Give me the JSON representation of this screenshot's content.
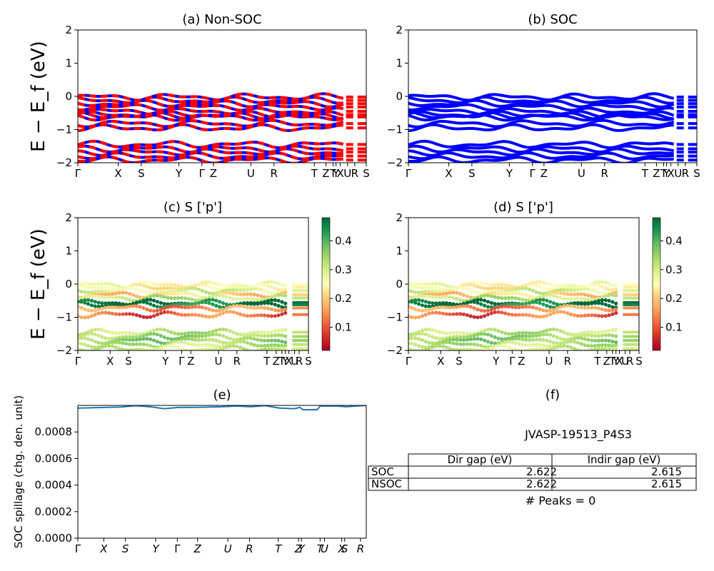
{
  "material_id": "JVASP-19513_P4S3",
  "peaks_text": "# Peaks = 0",
  "colors": {
    "nonsoc_a": "#0000ff",
    "nonsoc_b": "#ff0000",
    "soc": "#0000ff",
    "spillage": "#1f77b4"
  },
  "colormap": {
    "name": "RdYlGn",
    "stops": [
      "#a50026",
      "#f46d43",
      "#fdae61",
      "#fee08b",
      "#ffffbf",
      "#d9ef8b",
      "#a6d96a",
      "#66bd63",
      "#1a9850",
      "#006837"
    ]
  },
  "chart_data": [
    {
      "panel": "a",
      "type": "line",
      "title": "(a) Non-SOC",
      "ylabel": "E − E_f (eV)",
      "ylim": [
        -2,
        2
      ],
      "yticks": [
        "2",
        "1",
        "0",
        "−1",
        "−2"
      ],
      "xlabels": [
        "Γ",
        "X",
        "S",
        "Y",
        "Γ",
        "Z",
        "U",
        "R",
        "T",
        "Z",
        "T",
        "Y",
        "X",
        "U",
        "R",
        "S"
      ],
      "xpos": [
        0,
        0.14,
        0.22,
        0.35,
        0.43,
        0.47,
        0.6,
        0.68,
        0.82,
        0.86,
        0.885,
        0.895,
        0.91,
        0.935,
        0.96,
        1.0
      ],
      "bands_eV": [
        -0.02,
        -0.12,
        -0.22,
        -0.32,
        -0.45,
        -0.55,
        -0.58,
        -0.62,
        -0.82,
        -0.95,
        -1.45,
        -1.58,
        -1.68,
        -1.8,
        -1.92
      ]
    },
    {
      "panel": "b",
      "type": "line",
      "title": "(b) SOC",
      "ylabel": "",
      "ylim": [
        -2,
        2
      ],
      "yticks": [
        "2",
        "1",
        "0",
        "−1",
        "−2"
      ],
      "xlabels": [
        "Γ",
        "X",
        "S",
        "Y",
        "Γ",
        "Z",
        "U",
        "R",
        "T",
        "Z",
        "T",
        "Y",
        "X",
        "U",
        "R",
        "S"
      ],
      "xpos": [
        0,
        0.14,
        0.22,
        0.35,
        0.43,
        0.47,
        0.6,
        0.68,
        0.82,
        0.86,
        0.885,
        0.895,
        0.91,
        0.935,
        0.96,
        1.0
      ],
      "bands_eV": [
        -0.02,
        -0.12,
        -0.22,
        -0.32,
        -0.45,
        -0.55,
        -0.58,
        -0.62,
        -0.82,
        -0.95,
        -1.45,
        -1.58,
        -1.68,
        -1.8,
        -1.92
      ]
    },
    {
      "panel": "c",
      "type": "scatter",
      "title": "(c)  S ['p']",
      "ylabel": "E − E_f (eV)",
      "ylim": [
        -2,
        2
      ],
      "yticks": [
        "2",
        "1",
        "0",
        "−1",
        "−2"
      ],
      "xlabels": [
        "Γ",
        "X",
        "S",
        "Y",
        "Γ",
        "Z",
        "U",
        "R",
        "T",
        "Z",
        "T",
        "Y",
        "X",
        "U",
        "R",
        "S"
      ],
      "xpos": [
        0,
        0.14,
        0.22,
        0.38,
        0.45,
        0.49,
        0.61,
        0.69,
        0.82,
        0.86,
        0.885,
        0.9,
        0.915,
        0.94,
        0.96,
        1.0
      ],
      "colorbar": {
        "range": [
          0.02,
          0.48
        ],
        "ticks": [
          "0.4",
          "0.3",
          "0.2",
          "0.1"
        ],
        "tick_values": [
          0.4,
          0.3,
          0.2,
          0.1
        ]
      },
      "bands": [
        {
          "e": -0.02,
          "w": 0.22
        },
        {
          "e": -0.1,
          "w": 0.2
        },
        {
          "e": -0.2,
          "w": 0.27
        },
        {
          "e": -0.32,
          "w": 0.16
        },
        {
          "e": -0.42,
          "w": 0.3
        },
        {
          "e": -0.56,
          "w": 0.47
        },
        {
          "e": -0.62,
          "w": 0.45
        },
        {
          "e": -0.72,
          "w": 0.1
        },
        {
          "e": -0.92,
          "w": 0.08
        },
        {
          "e": -1.45,
          "w": 0.3
        },
        {
          "e": -1.58,
          "w": 0.33
        },
        {
          "e": -1.7,
          "w": 0.34
        },
        {
          "e": -1.82,
          "w": 0.3
        },
        {
          "e": -1.95,
          "w": 0.28
        }
      ]
    },
    {
      "panel": "d",
      "type": "scatter",
      "title": "(d) S ['p']",
      "ylabel": "",
      "ylim": [
        -2,
        2
      ],
      "yticks": [
        "2",
        "1",
        "0",
        "−1",
        "−2"
      ],
      "xlabels": [
        "Γ",
        "X",
        "S",
        "Y",
        "Γ",
        "Z",
        "U",
        "R",
        "T",
        "Z",
        "T",
        "Y",
        "X",
        "U",
        "R",
        "S"
      ],
      "xpos": [
        0,
        0.14,
        0.22,
        0.38,
        0.45,
        0.49,
        0.61,
        0.69,
        0.82,
        0.86,
        0.885,
        0.9,
        0.915,
        0.94,
        0.96,
        1.0
      ],
      "colorbar": {
        "range": [
          0.02,
          0.48
        ],
        "ticks": [
          "0.4",
          "0.3",
          "0.2",
          "0.1"
        ],
        "tick_values": [
          0.4,
          0.3,
          0.2,
          0.1
        ]
      },
      "bands": [
        {
          "e": -0.02,
          "w": 0.22
        },
        {
          "e": -0.1,
          "w": 0.2
        },
        {
          "e": -0.2,
          "w": 0.27
        },
        {
          "e": -0.32,
          "w": 0.16
        },
        {
          "e": -0.42,
          "w": 0.3
        },
        {
          "e": -0.56,
          "w": 0.47
        },
        {
          "e": -0.62,
          "w": 0.45
        },
        {
          "e": -0.72,
          "w": 0.1
        },
        {
          "e": -0.92,
          "w": 0.08
        },
        {
          "e": -1.45,
          "w": 0.3
        },
        {
          "e": -1.58,
          "w": 0.33
        },
        {
          "e": -1.7,
          "w": 0.34
        },
        {
          "e": -1.82,
          "w": 0.3
        },
        {
          "e": -1.95,
          "w": 0.28
        }
      ]
    },
    {
      "panel": "e",
      "type": "line",
      "title": "(e)",
      "ylabel": "SOC spillage (chg. den. unit)",
      "ylim": [
        0,
        0.001
      ],
      "yticks": [
        "0.0008",
        "0.0006",
        "0.0004",
        "0.0002",
        "0.0000"
      ],
      "ytick_values": [
        0.0008,
        0.0006,
        0.0004,
        0.0002,
        0.0
      ],
      "xlabels": [
        "Γ",
        "X",
        "S",
        "Y",
        "Γ",
        "Z",
        "U",
        "R",
        "T",
        "Z",
        "Y",
        "T",
        "U",
        "X",
        "S",
        "R"
      ],
      "xpos": [
        0,
        0.09,
        0.165,
        0.27,
        0.345,
        0.415,
        0.52,
        0.595,
        0.695,
        0.765,
        0.775,
        0.84,
        0.855,
        0.915,
        0.925,
        0.98
      ],
      "x": [
        0,
        0.05,
        0.1,
        0.15,
        0.2,
        0.25,
        0.3,
        0.35,
        0.4,
        0.45,
        0.5,
        0.55,
        0.6,
        0.65,
        0.7,
        0.75,
        0.77,
        0.78,
        0.83,
        0.84,
        0.85,
        0.9,
        0.93,
        1.0
      ],
      "y": [
        0.00098,
        0.000982,
        0.000985,
        0.000988,
        0.000998,
        0.00099,
        0.000975,
        0.000985,
        0.000985,
        0.000987,
        0.00099,
        0.000995,
        0.00099,
        0.000998,
        0.00098,
        0.000975,
        0.000985,
        0.000968,
        0.000968,
        0.000995,
        0.000995,
        0.000995,
        0.00099,
        0.001
      ]
    }
  ],
  "table": {
    "title": "(f)",
    "headers": [
      "Dir gap (eV)",
      "Indir gap (eV)"
    ],
    "rows": [
      {
        "label": "SOC",
        "dir": "2.622",
        "indir": "2.615"
      },
      {
        "label": "NSOC",
        "dir": "2.622",
        "indir": "2.615"
      }
    ]
  }
}
